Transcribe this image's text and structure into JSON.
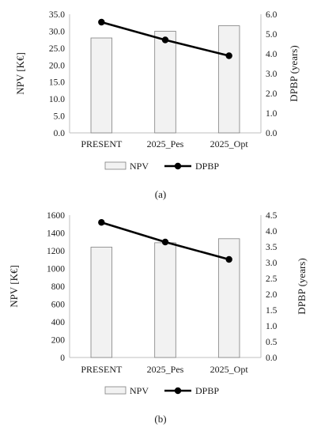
{
  "chart_data": [
    {
      "type": "bar",
      "caption": "(a)",
      "categories": [
        "PRESENT",
        "2025_Pes",
        "2025_Opt"
      ],
      "series": [
        {
          "name": "NPV",
          "type": "bar",
          "axis": "left",
          "values": [
            28.0,
            30.0,
            31.6
          ]
        },
        {
          "name": "DPBP",
          "type": "line",
          "axis": "right",
          "values": [
            5.6,
            4.7,
            3.9
          ]
        }
      ],
      "ylabel": "NPV [K€]",
      "y2label": "DPBP (years)",
      "ylim": [
        0,
        35
      ],
      "y2lim": [
        0,
        6
      ],
      "yticks": [
        "0.0",
        "5.0",
        "10.0",
        "15.0",
        "20.0",
        "25.0",
        "30.0",
        "35.0"
      ],
      "y2ticks": [
        "0.0",
        "1.0",
        "2.0",
        "3.0",
        "4.0",
        "5.0",
        "6.0"
      ],
      "legend": [
        "NPV",
        "DPBP"
      ],
      "legend_position": "bottom"
    },
    {
      "type": "bar",
      "caption": "(b)",
      "categories": [
        "PRESENT",
        "2025_Pes",
        "2025_Opt"
      ],
      "series": [
        {
          "name": "NPV",
          "type": "bar",
          "axis": "left",
          "values": [
            1240,
            1290,
            1335
          ]
        },
        {
          "name": "DPBP",
          "type": "line",
          "axis": "right",
          "values": [
            4.27,
            3.65,
            3.1
          ]
        }
      ],
      "ylabel": "NPV [K€]",
      "y2label": "DPBP (years)",
      "ylim": [
        0,
        1600
      ],
      "y2lim": [
        0,
        4.5
      ],
      "yticks": [
        "0",
        "200",
        "400",
        "600",
        "800",
        "1000",
        "1200",
        "1400",
        "1600"
      ],
      "y2ticks": [
        "0.0",
        "0.5",
        "1.0",
        "1.5",
        "2.0",
        "2.5",
        "3.0",
        "3.5",
        "4.0",
        "4.5"
      ],
      "legend": [
        "NPV",
        "DPBP"
      ],
      "legend_position": "bottom"
    }
  ]
}
